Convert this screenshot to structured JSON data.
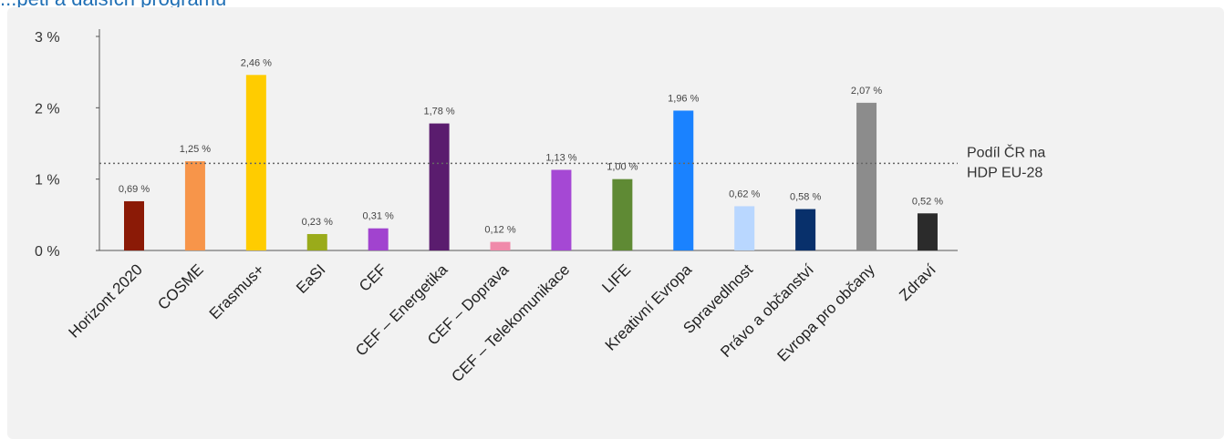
{
  "header": {
    "partial_text": "...pěti a dalších programů"
  },
  "chart_data": {
    "type": "bar",
    "categories": [
      "Horizont 2020",
      "COSME",
      "Erasmus+",
      "EaSI",
      "CEF",
      "CEF – Energetika",
      "CEF – Doprava",
      "CEF – Telekomunikace",
      "LIFE",
      "Kreativní Evropa",
      "Spravedlnost",
      "Právo a občanství",
      "Evropa pro občany",
      "Zdraví"
    ],
    "values": [
      0.69,
      1.25,
      2.46,
      0.23,
      0.31,
      1.78,
      0.12,
      1.13,
      1.0,
      1.96,
      0.62,
      0.58,
      2.07,
      0.52
    ],
    "value_labels": [
      "0,69 %",
      "1,25 %",
      "2,46 %",
      "0,23 %",
      "0,31 %",
      "1,78 %",
      "0,12 %",
      "1,13 %",
      "1,00 %",
      "1,96 %",
      "0,62 %",
      "0,58 %",
      "2,07 %",
      "0,52 %"
    ],
    "colors": [
      "#8b1a06",
      "#f7954a",
      "#ffcc00",
      "#9aab1a",
      "#a143cf",
      "#5a1c6e",
      "#f08aaa",
      "#a548d4",
      "#5f8a34",
      "#1a82ff",
      "#b9d7ff",
      "#08306b",
      "#8c8c8c",
      "#2b2b2b"
    ],
    "yticks": [
      0,
      1,
      2,
      3
    ],
    "ytick_labels": [
      "0 %",
      "1 %",
      "2 %",
      "3 %"
    ],
    "ylim": [
      0,
      3
    ],
    "reference_line": {
      "value": 1.22,
      "label_line1": "Podíl ČR na",
      "label_line2": "HDP EU-28",
      "style": "dotted"
    },
    "title": "",
    "xlabel": "",
    "ylabel": "",
    "grid": false,
    "legend": "none"
  }
}
